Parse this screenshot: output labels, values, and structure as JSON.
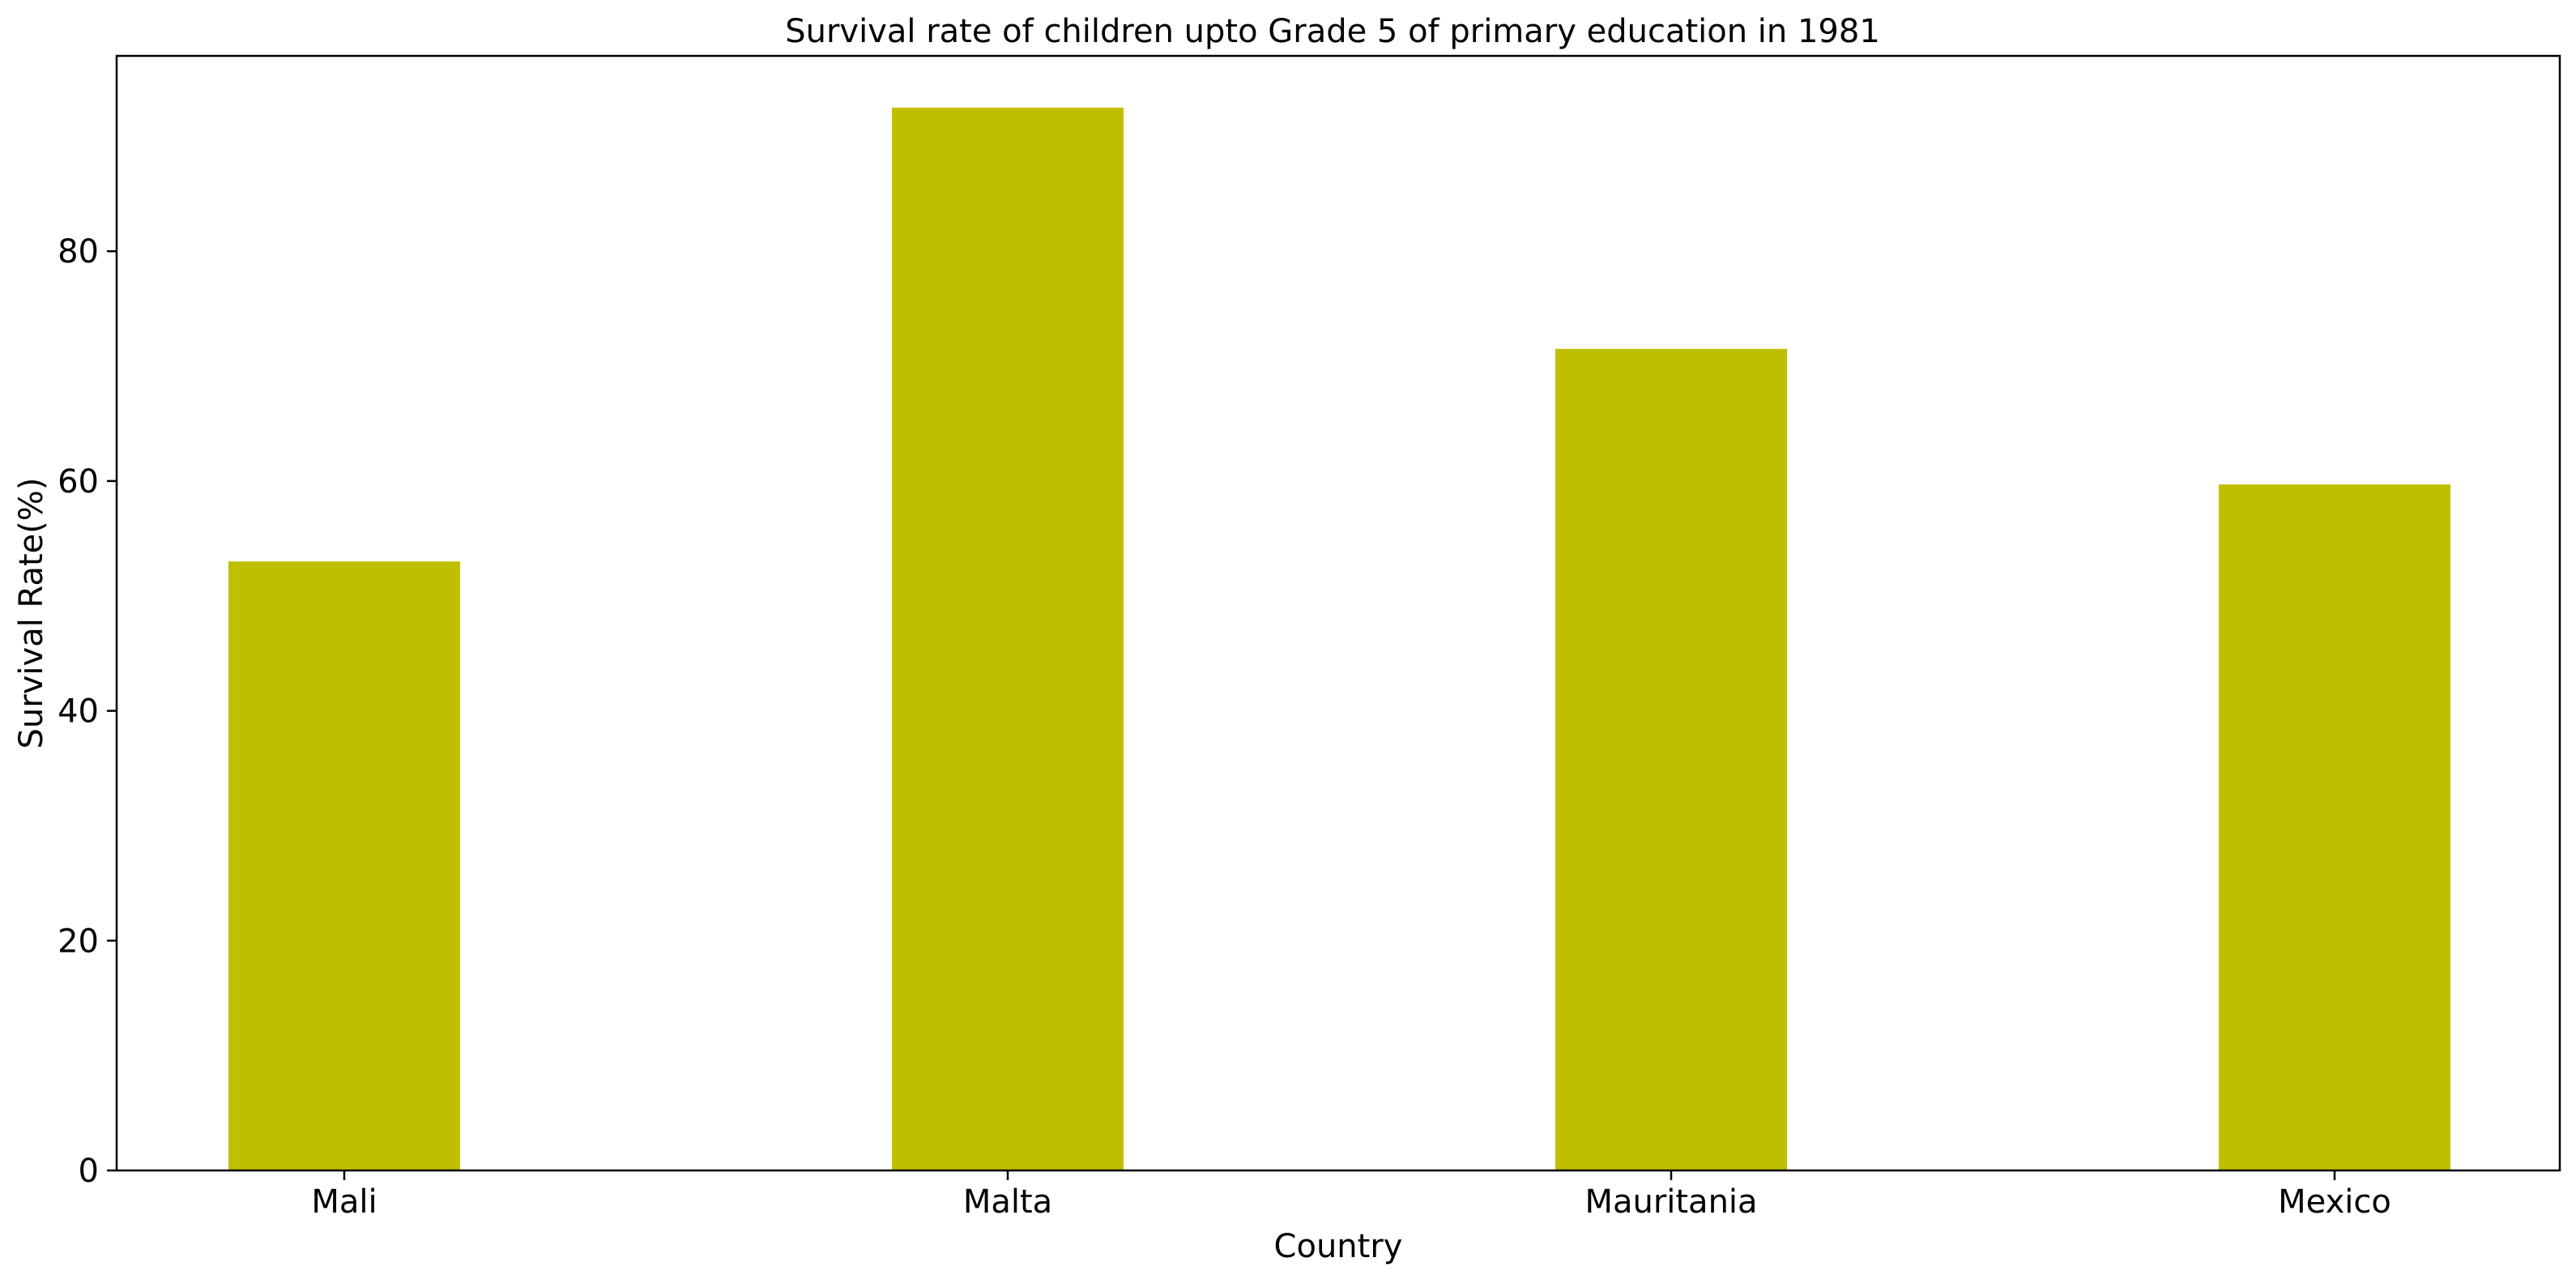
{
  "chart_data": {
    "type": "bar",
    "title": "Survival rate of children upto Grade 5 of primary education in 1981",
    "xlabel": "Country",
    "ylabel": "Survival Rate(%)",
    "categories": [
      "Mali",
      "Malta",
      "Mauritania",
      "Mexico"
    ],
    "series": [
      {
        "values": [
          53.0,
          92.5,
          71.5,
          59.7
        ]
      }
    ],
    "ylim": [
      0,
      97
    ],
    "yticks": [
      0,
      20,
      40,
      60,
      80
    ],
    "ytick_labels": [
      "0",
      "20",
      "40",
      "60",
      "80"
    ],
    "grid": false,
    "legend": "none",
    "bar_color": "#bfbf00",
    "axis_color": "#000000"
  }
}
